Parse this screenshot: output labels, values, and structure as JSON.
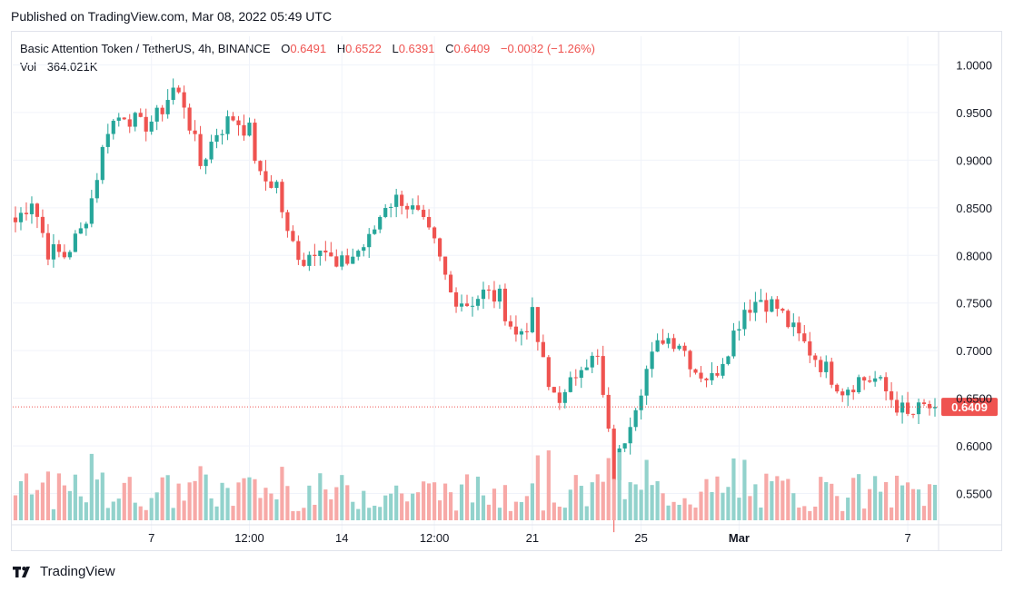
{
  "published": "Published on TradingView.com, Mar 08, 2022 05:49 UTC",
  "legend": {
    "symbol": "Basic Attention Token / TetherUS, 4h, BINANCE",
    "o_label": "O",
    "o_value": "0.6491",
    "h_label": "H",
    "h_value": "0.6522",
    "l_label": "L",
    "l_value": "0.6391",
    "c_label": "C",
    "c_value": "0.6409",
    "change": "−0.0082 (−1.26%)",
    "vol_label": "Vol",
    "vol_value": "364.021K"
  },
  "brand": "TradingView",
  "colors": {
    "up": "#26a69a",
    "down": "#ef5350",
    "up_volume": "#92d2cc",
    "down_volume": "#f7a9a7",
    "grid": "#f0f3fa"
  },
  "chart_data": {
    "type": "candlestick",
    "ylim": [
      0.52,
      1.03
    ],
    "y_ticks": [
      "1.0000",
      "0.9500",
      "0.9000",
      "0.8500",
      "0.8000",
      "0.7500",
      "0.7000",
      "0.6500",
      "0.6000",
      "0.5500"
    ],
    "y_tick_values": [
      1.0,
      0.95,
      0.9,
      0.85,
      0.8,
      0.75,
      0.7,
      0.65,
      0.6,
      0.55
    ],
    "x_ticks": [
      "7",
      "12:00",
      "14",
      "12:00",
      "21",
      "25",
      "Mar",
      "7"
    ],
    "x_tick_index": [
      25,
      43,
      60,
      77,
      95,
      115,
      133,
      164
    ],
    "last_price": "0.6409",
    "last_value": 0.6409,
    "anchors": [
      [
        0,
        0.835
      ],
      [
        3,
        0.86
      ],
      [
        6,
        0.805
      ],
      [
        9,
        0.8
      ],
      [
        12,
        0.825
      ],
      [
        14,
        0.86
      ],
      [
        17,
        0.935
      ],
      [
        20,
        0.95
      ],
      [
        23,
        0.935
      ],
      [
        26,
        0.945
      ],
      [
        29,
        0.975
      ],
      [
        31,
        0.96
      ],
      [
        34,
        0.895
      ],
      [
        37,
        0.93
      ],
      [
        40,
        0.945
      ],
      [
        43,
        0.93
      ],
      [
        45,
        0.88
      ],
      [
        48,
        0.875
      ],
      [
        50,
        0.82
      ],
      [
        53,
        0.795
      ],
      [
        56,
        0.815
      ],
      [
        59,
        0.785
      ],
      [
        62,
        0.8
      ],
      [
        65,
        0.815
      ],
      [
        68,
        0.855
      ],
      [
        71,
        0.86
      ],
      [
        74,
        0.84
      ],
      [
        77,
        0.81
      ],
      [
        80,
        0.76
      ],
      [
        83,
        0.75
      ],
      [
        86,
        0.76
      ],
      [
        89,
        0.755
      ],
      [
        92,
        0.715
      ],
      [
        95,
        0.735
      ],
      [
        98,
        0.66
      ],
      [
        101,
        0.65
      ],
      [
        104,
        0.69
      ],
      [
        107,
        0.69
      ],
      [
        110,
        0.57
      ],
      [
        113,
        0.63
      ],
      [
        116,
        0.68
      ],
      [
        119,
        0.715
      ],
      [
        122,
        0.71
      ],
      [
        125,
        0.68
      ],
      [
        128,
        0.67
      ],
      [
        131,
        0.705
      ],
      [
        134,
        0.745
      ],
      [
        137,
        0.755
      ],
      [
        140,
        0.745
      ],
      [
        143,
        0.72
      ],
      [
        146,
        0.7
      ],
      [
        149,
        0.68
      ],
      [
        152,
        0.66
      ],
      [
        155,
        0.67
      ],
      [
        158,
        0.67
      ],
      [
        161,
        0.65
      ],
      [
        164,
        0.63
      ],
      [
        167,
        0.64
      ],
      [
        169,
        0.6409
      ]
    ],
    "volume_max": 1.0
  }
}
